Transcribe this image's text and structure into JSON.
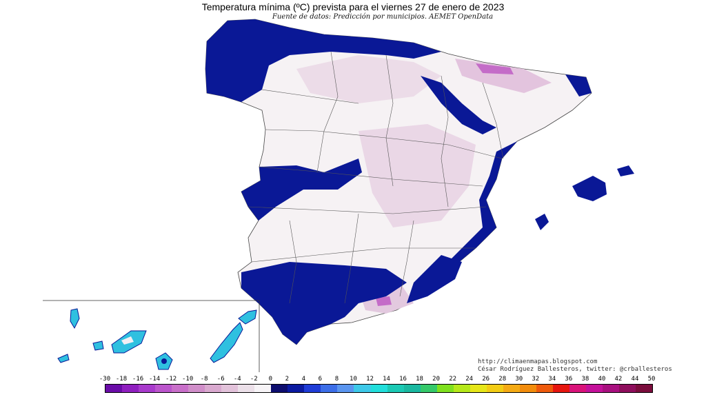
{
  "map": {
    "title": "Temperatura mínima (ºC) prevista para el viernes 27 de enero de 2023",
    "subtitle": "Fuente de datos: Predicción por municipios. AEMET OpenData",
    "credits": {
      "url": "http://climaenmapas.blogspot.com",
      "author": "César Rodríguez Ballesteros, twitter: @crballesteros"
    },
    "legend": {
      "ticks": [
        "-30",
        "-18",
        "-16",
        "-14",
        "-12",
        "-10",
        "-8",
        "-6",
        "-4",
        "-2",
        "0",
        "2",
        "4",
        "6",
        "8",
        "10",
        "12",
        "14",
        "16",
        "18",
        "20",
        "22",
        "24",
        "26",
        "28",
        "30",
        "32",
        "34",
        "36",
        "38",
        "40",
        "42",
        "44",
        "50"
      ],
      "colors": [
        "#6a0ca8",
        "#8f1fbf",
        "#a83acc",
        "#bb55cc",
        "#c86fc9",
        "#d08ec9",
        "#d9a9cf",
        "#e2c2da",
        "#ece0e9",
        "#f7f4f7",
        "#0d0d6e",
        "#0b1aa0",
        "#1f3cd6",
        "#3c6ee8",
        "#5a95ef",
        "#3dc8e8",
        "#21dedb",
        "#1bc9b4",
        "#1ab8a0",
        "#35c96a",
        "#7fe01e",
        "#b5e81a",
        "#e6e619",
        "#f2cc14",
        "#f4aa14",
        "#f28c0c",
        "#ee5a0c",
        "#e6160f",
        "#d9137a",
        "#c4119a",
        "#a8107f",
        "#8e0e5c",
        "#7a0d3c"
      ]
    },
    "colors": {
      "land": "#f6f2f4",
      "cold_blue": "#0a1896",
      "dark_blue": "#08106a",
      "lilac": "#e6cfe2",
      "magenta": "#c46cc8",
      "border": "#555555"
    }
  }
}
